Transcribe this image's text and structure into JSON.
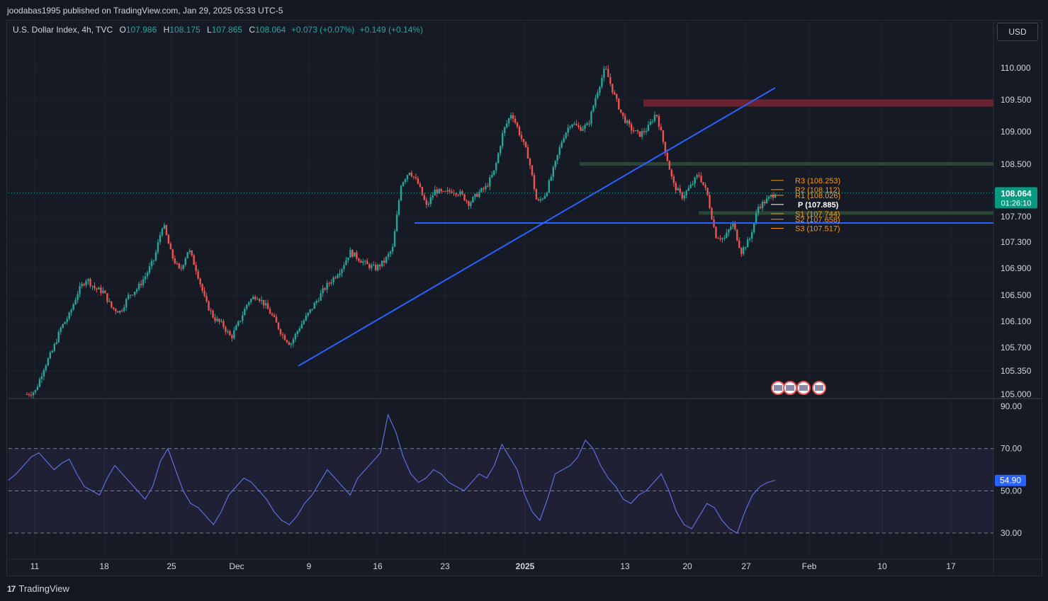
{
  "header": {
    "published": "joodabas1995 published on TradingView.com, Jan 29, 2025 05:33 UTC-5"
  },
  "legend": {
    "symbol": "U.S. Dollar Index, 4h, TVC",
    "o_label": "O",
    "o": "107.986",
    "h_label": "H",
    "h": "108.175",
    "l_label": "L",
    "l": "107.865",
    "c_label": "C",
    "c": "108.064",
    "change": "+0.073 (+0.07%)",
    "change2": "+0.149 (+0.14%)"
  },
  "currency_button": "USD",
  "brand": {
    "logo": "17",
    "name": "TradingView"
  },
  "colors": {
    "up": "#26a69a",
    "down": "#ef5350",
    "trendline": "#2962ff",
    "rsi_line": "#5b6fe0",
    "resistance_zone": "#7a2330",
    "support_zone": "#2e4a36",
    "pivot_orange": "#ff9800",
    "price_label_bg": "#089981"
  },
  "chart_data": {
    "type": "candlestick",
    "timeframe": "4h",
    "price_axis": {
      "min": 105.0,
      "max": 110.3,
      "ticks": [
        "110.000",
        "109.500",
        "109.000",
        "108.500",
        "107.700",
        "107.300",
        "106.900",
        "106.500",
        "106.100",
        "105.700",
        "105.350",
        "105.000"
      ]
    },
    "last_price": {
      "value": "108.064",
      "countdown": "01:26:10"
    },
    "time_axis": [
      "11",
      "18",
      "25",
      "Dec",
      "9",
      "16",
      "23",
      "2025",
      "13",
      "20",
      "27",
      "Feb",
      "10",
      "17"
    ],
    "close_path": [
      [
        0,
        105.0
      ],
      [
        2,
        105.05
      ],
      [
        4,
        105.4
      ],
      [
        6,
        105.65
      ],
      [
        8,
        106.0
      ],
      [
        10,
        106.2
      ],
      [
        12,
        106.55
      ],
      [
        14,
        106.75
      ],
      [
        16,
        106.6
      ],
      [
        18,
        106.55
      ],
      [
        20,
        106.3
      ],
      [
        22,
        106.25
      ],
      [
        24,
        106.5
      ],
      [
        26,
        106.6
      ],
      [
        28,
        106.8
      ],
      [
        30,
        107.05
      ],
      [
        32,
        107.6
      ],
      [
        34,
        107.1
      ],
      [
        36,
        106.85
      ],
      [
        38,
        107.2
      ],
      [
        40,
        106.85
      ],
      [
        42,
        106.4
      ],
      [
        44,
        106.15
      ],
      [
        46,
        106.05
      ],
      [
        48,
        105.85
      ],
      [
        50,
        106.1
      ],
      [
        52,
        106.4
      ],
      [
        54,
        106.5
      ],
      [
        56,
        106.35
      ],
      [
        58,
        106.15
      ],
      [
        60,
        105.9
      ],
      [
        62,
        105.75
      ],
      [
        64,
        106.0
      ],
      [
        66,
        106.2
      ],
      [
        68,
        106.4
      ],
      [
        70,
        106.6
      ],
      [
        72,
        106.75
      ],
      [
        74,
        106.9
      ],
      [
        76,
        107.15
      ],
      [
        78,
        107.05
      ],
      [
        80,
        106.95
      ],
      [
        82,
        106.9
      ],
      [
        84,
        107.0
      ],
      [
        86,
        107.2
      ],
      [
        88,
        108.2
      ],
      [
        90,
        108.4
      ],
      [
        92,
        108.2
      ],
      [
        94,
        107.85
      ],
      [
        96,
        108.1
      ],
      [
        98,
        108.05
      ],
      [
        100,
        108.1
      ],
      [
        102,
        108.05
      ],
      [
        104,
        107.9
      ],
      [
        106,
        108.05
      ],
      [
        108,
        108.15
      ],
      [
        110,
        108.4
      ],
      [
        112,
        109.0
      ],
      [
        114,
        109.3
      ],
      [
        116,
        108.95
      ],
      [
        118,
        108.6
      ],
      [
        120,
        107.9
      ],
      [
        122,
        108.05
      ],
      [
        124,
        108.45
      ],
      [
        126,
        108.9
      ],
      [
        128,
        109.15
      ],
      [
        130,
        109.05
      ],
      [
        132,
        109.1
      ],
      [
        134,
        109.6
      ],
      [
        136,
        110.0
      ],
      [
        138,
        109.6
      ],
      [
        140,
        109.25
      ],
      [
        142,
        109.05
      ],
      [
        144,
        108.95
      ],
      [
        146,
        109.05
      ],
      [
        148,
        109.3
      ],
      [
        150,
        108.75
      ],
      [
        152,
        108.2
      ],
      [
        154,
        108.0
      ],
      [
        156,
        108.15
      ],
      [
        158,
        108.35
      ],
      [
        160,
        108.05
      ],
      [
        162,
        107.4
      ],
      [
        164,
        107.35
      ],
      [
        166,
        107.6
      ],
      [
        168,
        107.15
      ],
      [
        170,
        107.35
      ],
      [
        172,
        107.85
      ],
      [
        174,
        107.95
      ],
      [
        176,
        108.06
      ]
    ],
    "trendlines": [
      {
        "name": "rising-trendline",
        "points": [
          [
            105.45,
            "Dec 6"
          ],
          [
            109.65,
            "Jan 28"
          ]
        ]
      },
      {
        "name": "horizontal-support",
        "value": 107.6
      }
    ],
    "zones": [
      {
        "name": "resistance-zone",
        "from": 109.35,
        "to": 109.45
      },
      {
        "name": "support-zone-upper",
        "value": 108.5
      },
      {
        "name": "support-zone-lower",
        "value": 107.75
      }
    ],
    "pivots": [
      {
        "label": "R3 (108.253)",
        "value": 108.253
      },
      {
        "label": "R2 (108.112)",
        "value": 108.112
      },
      {
        "label": "R1 (108.026)",
        "value": 108.026
      },
      {
        "label": "P (107.885)",
        "value": 107.885
      },
      {
        "label": "S1 (107.744)",
        "value": 107.744
      },
      {
        "label": "S2 (107.658)",
        "value": 107.658
      },
      {
        "label": "S3 (107.517)",
        "value": 107.517
      }
    ],
    "rsi": {
      "ticks": [
        "90.00",
        "70.00",
        "50.00",
        "30.00"
      ],
      "last": "54.90",
      "band": [
        30,
        70
      ],
      "values": [
        55,
        58,
        62,
        66,
        68,
        64,
        60,
        63,
        65,
        58,
        52,
        50,
        48,
        56,
        62,
        58,
        54,
        50,
        46,
        52,
        64,
        70,
        60,
        50,
        44,
        42,
        38,
        34,
        40,
        48,
        52,
        56,
        54,
        50,
        46,
        40,
        36,
        34,
        38,
        44,
        48,
        54,
        60,
        56,
        52,
        48,
        56,
        60,
        64,
        68,
        86,
        78,
        66,
        58,
        54,
        56,
        60,
        58,
        54,
        52,
        50,
        54,
        58,
        56,
        62,
        72,
        66,
        60,
        48,
        40,
        36,
        46,
        58,
        60,
        62,
        66,
        74,
        70,
        62,
        56,
        52,
        46,
        44,
        48,
        50,
        54,
        58,
        50,
        40,
        34,
        32,
        38,
        44,
        42,
        36,
        32,
        30,
        40,
        48,
        52,
        54,
        55
      ]
    }
  }
}
